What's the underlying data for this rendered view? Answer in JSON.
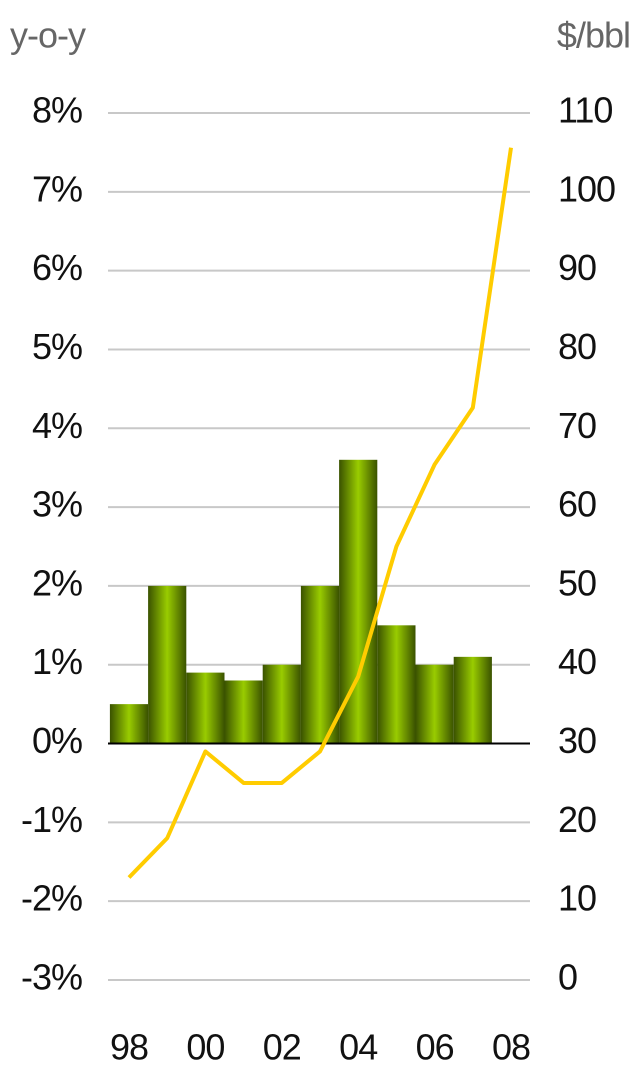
{
  "chart_data": {
    "type": "combo",
    "y_label": "y-o-y",
    "y2_label": "$/bbl",
    "categories": [
      "98",
      null,
      "00",
      null,
      "02",
      null,
      "04",
      null,
      "06",
      null,
      "08"
    ],
    "series": [
      {
        "type": "bar",
        "color": "#99cc00",
        "values": [
          0.5,
          2.0,
          0.9,
          0.8,
          1.0,
          2.0,
          3.6,
          1.5,
          1.0,
          1.1,
          null
        ]
      },
      {
        "type": "line",
        "axis": "y2",
        "color": "#ffcc00",
        "values": [
          13,
          18,
          29,
          25,
          25,
          29,
          38.5,
          55,
          65.4,
          72.6,
          105.6
        ]
      }
    ],
    "ylim": [
      -3,
      8
    ],
    "yticks": [
      {
        "value": -3,
        "label": "-3%"
      },
      {
        "value": -2,
        "label": "-2%"
      },
      {
        "value": -1,
        "label": "-1%"
      },
      {
        "value": 0,
        "label": "0%"
      },
      {
        "value": 1,
        "label": "1%"
      },
      {
        "value": 2,
        "label": "2%"
      },
      {
        "value": 3,
        "label": "3%"
      },
      {
        "value": 4,
        "label": "4%"
      },
      {
        "value": 5,
        "label": "5%"
      },
      {
        "value": 6,
        "label": "6%"
      },
      {
        "value": 7,
        "label": "7%"
      },
      {
        "value": 8,
        "label": "8%"
      }
    ],
    "y2lim": [
      0,
      110
    ],
    "y2ticks": [
      0,
      10,
      20,
      30,
      40,
      50,
      60,
      70,
      80,
      90,
      100,
      110
    ],
    "grid": true
  }
}
